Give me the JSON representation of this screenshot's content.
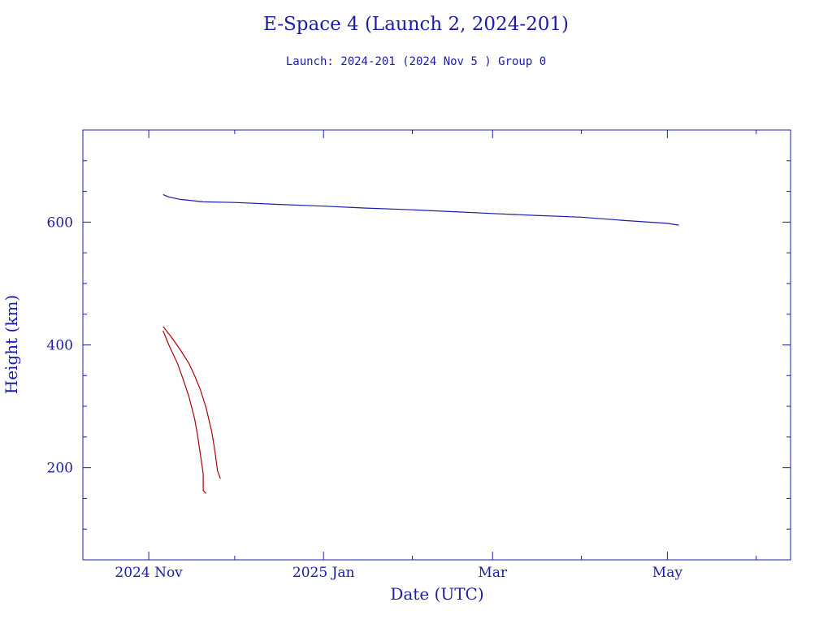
{
  "chart_data": {
    "type": "line",
    "title": "E-Space 4 (Launch 2, 2024-201)",
    "subtitle": "Launch: 2024-201  (2024 Nov  5 )  Group 0",
    "xlabel": "Date (UTC)",
    "ylabel": "Height (km)",
    "xlim": [
      "2024-10-09",
      "2025-06-13"
    ],
    "ylim": [
      50,
      750
    ],
    "x_ticks": [
      {
        "date": "2024-11-01",
        "label": "2024 Nov"
      },
      {
        "date": "2025-01-01",
        "label": "2025 Jan"
      },
      {
        "date": "2025-03-01",
        "label": "Mar"
      },
      {
        "date": "2025-05-01",
        "label": "May"
      }
    ],
    "x_minor_ticks": [
      "2024-10-01",
      "2024-12-01",
      "2025-02-01",
      "2025-04-01",
      "2025-06-01"
    ],
    "y_ticks": [
      200,
      400,
      600
    ],
    "y_minor_step": 50,
    "grid": false,
    "series": [
      {
        "color": "#1c1ca8",
        "points": [
          [
            "2024-11-06",
            645
          ],
          [
            "2024-11-08",
            641
          ],
          [
            "2024-11-12",
            637
          ],
          [
            "2024-11-20",
            633
          ],
          [
            "2024-12-01",
            632
          ],
          [
            "2024-12-15",
            629
          ],
          [
            "2025-01-01",
            626
          ],
          [
            "2025-01-15",
            623
          ],
          [
            "2025-02-01",
            620
          ],
          [
            "2025-02-15",
            617
          ],
          [
            "2025-03-01",
            614
          ],
          [
            "2025-03-15",
            611
          ],
          [
            "2025-04-01",
            608
          ],
          [
            "2025-04-15",
            603
          ],
          [
            "2025-05-01",
            598
          ],
          [
            "2025-05-05",
            595
          ]
        ]
      },
      {
        "color": "#b00000",
        "points": [
          [
            "2024-11-06",
            430
          ],
          [
            "2024-11-09",
            412
          ],
          [
            "2024-11-12",
            392
          ],
          [
            "2024-11-15",
            370
          ],
          [
            "2024-11-17",
            350
          ],
          [
            "2024-11-19",
            327
          ],
          [
            "2024-11-21",
            298
          ],
          [
            "2024-11-23",
            258
          ],
          [
            "2024-11-24",
            230
          ],
          [
            "2024-11-25",
            195
          ],
          [
            "2024-11-26",
            182
          ]
        ]
      },
      {
        "color": "#b00000",
        "points": [
          [
            "2024-11-06",
            423
          ],
          [
            "2024-11-08",
            400
          ],
          [
            "2024-11-11",
            370
          ],
          [
            "2024-11-13",
            344
          ],
          [
            "2024-11-15",
            316
          ],
          [
            "2024-11-17",
            280
          ],
          [
            "2024-11-18",
            253
          ],
          [
            "2024-11-19",
            222
          ],
          [
            "2024-11-20",
            190
          ],
          [
            "2024-11-20",
            163
          ],
          [
            "2024-11-21",
            158
          ]
        ]
      }
    ]
  }
}
